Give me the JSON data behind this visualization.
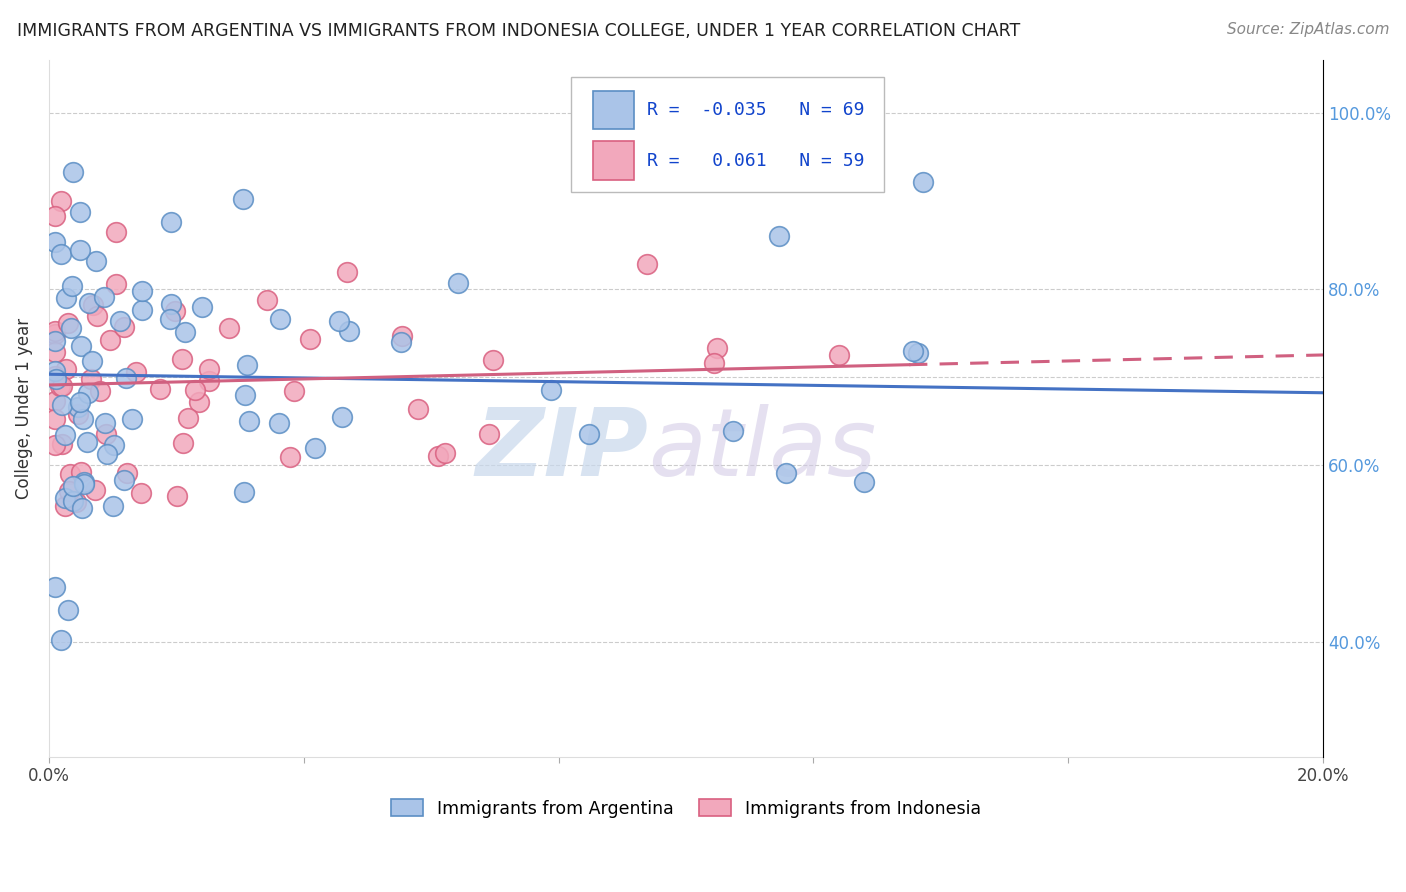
{
  "title": "IMMIGRANTS FROM ARGENTINA VS IMMIGRANTS FROM INDONESIA COLLEGE, UNDER 1 YEAR CORRELATION CHART",
  "source": "Source: ZipAtlas.com",
  "ylabel": "College, Under 1 year",
  "xlim": [
    0.0,
    0.2
  ],
  "ylim": [
    0.27,
    1.06
  ],
  "argentina_color": "#aac4e8",
  "argentina_edge": "#5b8ec4",
  "indonesia_color": "#f2a8bc",
  "indonesia_edge": "#d96080",
  "argentina_R": -0.035,
  "argentina_N": 69,
  "indonesia_R": 0.061,
  "indonesia_N": 59,
  "regression_color_argentina": "#4472c4",
  "regression_color_indonesia": "#d06080",
  "watermark_zip": "ZIP",
  "watermark_atlas": "atlas",
  "grid_color": "#cccccc",
  "right_tick_color": "#5599dd",
  "title_color": "#222222",
  "source_color": "#888888"
}
